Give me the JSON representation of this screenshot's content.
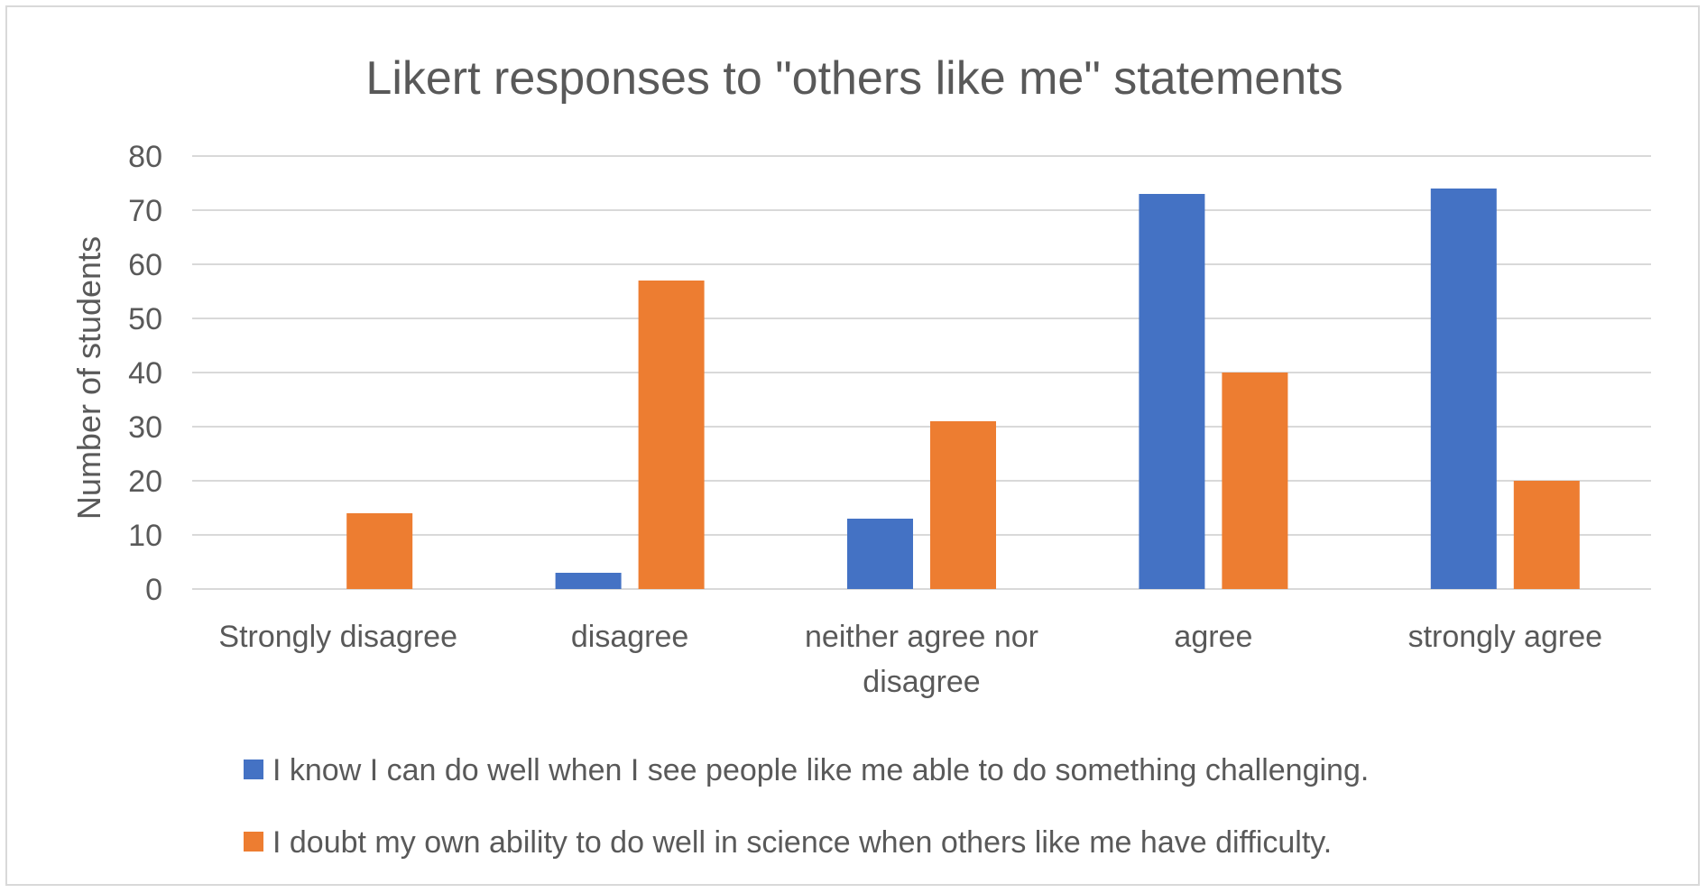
{
  "chart_data": {
    "type": "bar",
    "title": "Likert responses to \"others like me\" statements",
    "xlabel": "",
    "ylabel": "Number of students",
    "ylim": [
      0,
      80
    ],
    "yticks": [
      "0",
      "10",
      "20",
      "30",
      "40",
      "50",
      "60",
      "70",
      "80"
    ],
    "grid": true,
    "legend_position": "bottom",
    "categories": [
      [
        "Strongly disagree"
      ],
      [
        "disagree"
      ],
      [
        "neither agree nor",
        "disagree"
      ],
      [
        "agree"
      ],
      [
        "strongly agree"
      ]
    ],
    "series": [
      {
        "name": "I know I can do well when I see people like me able to do something challenging.",
        "color": "#4472c4",
        "values": [
          0,
          3,
          13,
          73,
          74
        ]
      },
      {
        "name": "I doubt my own ability to do well in science when others like me have difficulty.",
        "color": "#ed7d31",
        "values": [
          14,
          57,
          31,
          40,
          20
        ]
      }
    ]
  }
}
